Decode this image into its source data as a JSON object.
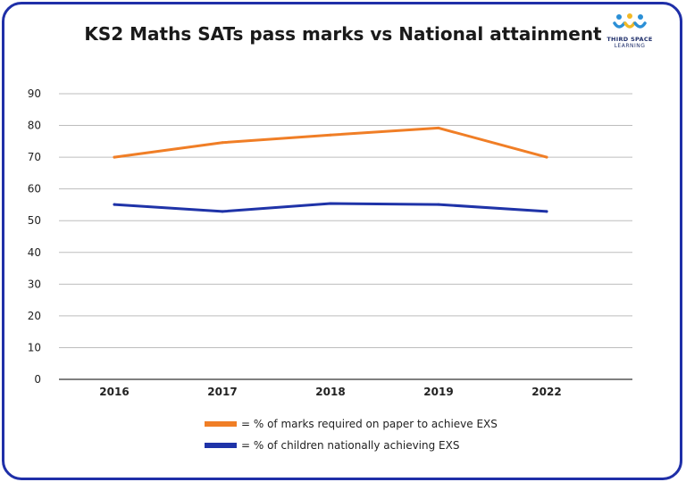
{
  "logo": {
    "line1": "THIRD SPACE",
    "line2": "LEARNING"
  },
  "chart_data": {
    "type": "line",
    "title": "KS2 Maths SATs pass marks vs National attainment",
    "categories": [
      "2016",
      "2017",
      "2018",
      "2019",
      "2022"
    ],
    "ylim": [
      0,
      90
    ],
    "yticks": [
      0,
      10,
      20,
      30,
      40,
      50,
      60,
      70,
      80,
      90
    ],
    "grid": true,
    "legend_position": "bottom",
    "series": [
      {
        "name": "= % of marks required on paper to achieve EXS",
        "color": "#f07e26",
        "values": [
          70,
          74.6,
          77,
          79.2,
          70
        ]
      },
      {
        "name": "= % of children nationally achieving EXS",
        "color": "#1f33a8",
        "values": [
          55.1,
          52.9,
          55.4,
          55.1,
          52.9
        ]
      }
    ]
  }
}
